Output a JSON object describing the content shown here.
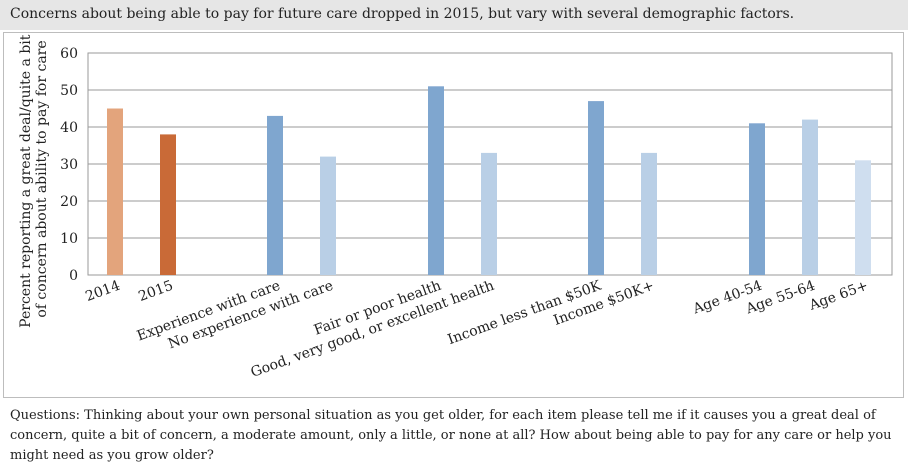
{
  "title": "Concerns about being able to pay for future care dropped in 2015, but vary with several demographic factors.",
  "questions": "Questions: Thinking about your own personal situation as you get older, for each item please tell me if it causes you a great deal of concern, quite a bit of concern, a moderate amount, only a little, or none at all? How about being able to pay for any care or help you might need as you grow older?",
  "chart_data": {
    "type": "bar",
    "ylabel": "Percent reporting a great deal/quite a bit of concern about ability to pay for care",
    "ylabel_lines": [
      "Percent reporting a great deal/quite a bit",
      "of concern about ability to pay for care"
    ],
    "ylim": [
      0,
      60
    ],
    "yticks": [
      0,
      10,
      20,
      30,
      40,
      50,
      60
    ],
    "grid": true,
    "categories": [
      "2014",
      "2015",
      "Experience with care",
      "No experience with care",
      "Fair or poor health",
      "Good, very good, or excellent health",
      "Income less than $50K",
      "Income $50K+",
      "Age 40-54",
      "Age 55-64",
      "Age 65+"
    ],
    "values": [
      45,
      38,
      43,
      32,
      51,
      33,
      47,
      33,
      41,
      42,
      31
    ],
    "colors": [
      "#e3a47c",
      "#c96a37",
      "#7fa6cf",
      "#b9cfe6",
      "#7fa6cf",
      "#b9cfe6",
      "#7fa6cf",
      "#b9cfe6",
      "#7fa6cf",
      "#b9cfe6",
      "#cfdeef"
    ]
  }
}
